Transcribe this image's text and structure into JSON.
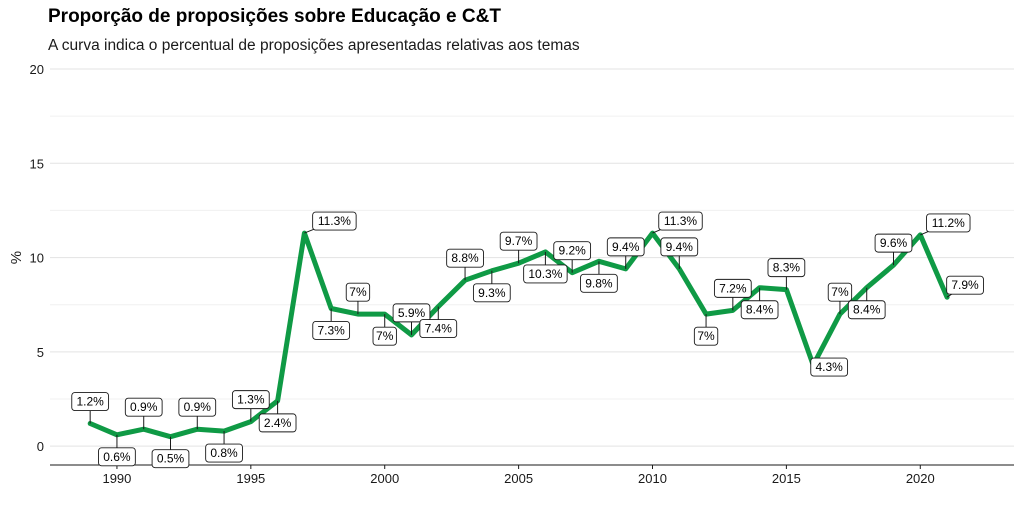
{
  "chart_data": {
    "type": "line",
    "title": "Proporção de proposições sobre Educação e C&T",
    "subtitle": "A curva indica o percentual de proposições apresentadas relativas aos temas",
    "xlabel": "",
    "ylabel": "%",
    "xlim": [
      1987.5,
      2023.5
    ],
    "ylim": [
      -1,
      20
    ],
    "yticks": [
      0,
      5,
      10,
      15,
      20
    ],
    "xticks": [
      1990,
      1995,
      2000,
      2005,
      2010,
      2015,
      2020
    ],
    "grid": true,
    "line_color": "#0f9a45",
    "series": [
      {
        "x": [
          1989,
          1990,
          1991,
          1992,
          1993,
          1994,
          1995,
          1996,
          1997,
          1998,
          1999,
          2000,
          2001,
          2002,
          2003,
          2004,
          2005,
          2006,
          2007,
          2008,
          2009,
          2010,
          2011,
          2012,
          2013,
          2014,
          2015,
          2016,
          2017,
          2018,
          2019,
          2020,
          2021
        ],
        "values": [
          1.2,
          0.6,
          0.9,
          0.5,
          0.9,
          0.8,
          1.3,
          2.4,
          11.3,
          7.3,
          7,
          7,
          5.9,
          7.4,
          8.8,
          9.3,
          9.7,
          10.3,
          9.2,
          9.8,
          9.4,
          11.3,
          9.4,
          7,
          7.2,
          8.4,
          8.3,
          4.3,
          7,
          8.4,
          9.6,
          11.2,
          7.9
        ],
        "labels": [
          "1.2%",
          "0.6%",
          "0.9%",
          "0.5%",
          "0.9%",
          "0.8%",
          "1.3%",
          "2.4%",
          "11.3%",
          "7.3%",
          "7%",
          "7%",
          "5.9%",
          "7.4%",
          "8.8%",
          "9.3%",
          "9.7%",
          "10.3%",
          "9.2%",
          "9.8%",
          "9.4%",
          "11.3%",
          "9.4%",
          "7%",
          "7.2%",
          "8.4%",
          "8.3%",
          "4.3%",
          "7%",
          "8.4%",
          "9.6%",
          "11.2%",
          "7.9%"
        ]
      }
    ]
  }
}
